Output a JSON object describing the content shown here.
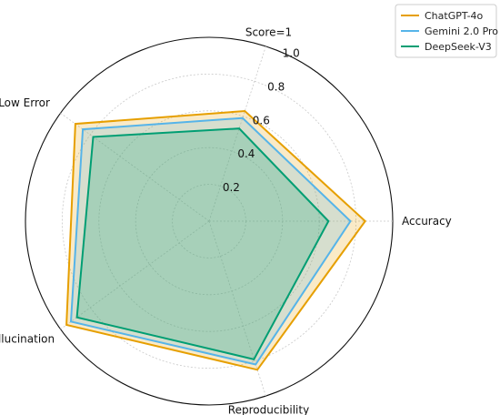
{
  "chart_data": {
    "type": "radar",
    "axes": [
      "Accuracy",
      "Score=1",
      "Low Error",
      "Low Hallucination",
      "Reproducibility"
    ],
    "rlim": [
      0,
      1.0
    ],
    "rticks": [
      "0.2",
      "0.4",
      "0.6",
      "0.8",
      "1.0"
    ],
    "grid": true,
    "legend_position": "top-right",
    "series": [
      {
        "name": "ChatGPT-4o",
        "color": "#E69F00",
        "values": [
          0.85,
          0.63,
          0.9,
          0.96,
          0.85
        ]
      },
      {
        "name": "Gemini 2.0 Pro",
        "color": "#56B4E9",
        "values": [
          0.77,
          0.59,
          0.85,
          0.93,
          0.82
        ]
      },
      {
        "name": "DeepSeek-V3",
        "color": "#009E73",
        "values": [
          0.65,
          0.53,
          0.78,
          0.89,
          0.79
        ]
      }
    ]
  }
}
